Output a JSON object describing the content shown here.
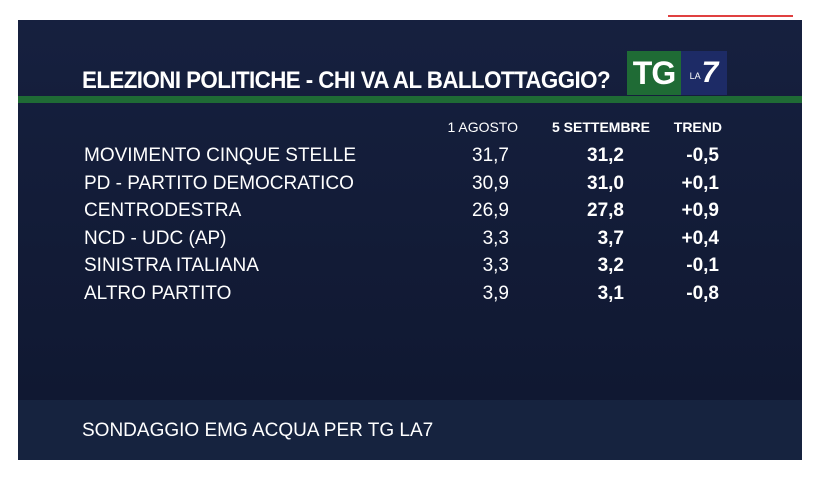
{
  "header": {
    "title": "ELEZIONI POLITICHE - CHI VA AL BALLOTTAGGIO?",
    "logo": {
      "tg": "TG",
      "la": "LA",
      "seven": "7"
    }
  },
  "chart_data": {
    "type": "table",
    "columns": [
      "1 AGOSTO",
      "5 SETTEMBRE",
      "TREND"
    ],
    "rows": [
      {
        "party": "MOVIMENTO CINQUE STELLE",
        "agosto": "31,7",
        "settembre": "31,2",
        "trend": "-0,5"
      },
      {
        "party": "PD - PARTITO DEMOCRATICO",
        "agosto": "30,9",
        "settembre": "31,0",
        "trend": "+0,1"
      },
      {
        "party": "CENTRODESTRA",
        "agosto": "26,9",
        "settembre": "27,8",
        "trend": "+0,9"
      },
      {
        "party": "NCD - UDC (AP)",
        "agosto": "3,3",
        "settembre": "3,7",
        "trend": "+0,4"
      },
      {
        "party": "SINISTRA ITALIANA",
        "agosto": "3,3",
        "settembre": "3,2",
        "trend": "-0,1"
      },
      {
        "party": "ALTRO PARTITO",
        "agosto": "3,9",
        "settembre": "3,1",
        "trend": "-0,8"
      }
    ]
  },
  "footer": {
    "source": "SONDAGGIO EMG ACQUA PER TG LA7"
  },
  "colors": {
    "background": "#141d3a",
    "accent": "#1f6b35",
    "logo_blue": "#1d2b66"
  }
}
